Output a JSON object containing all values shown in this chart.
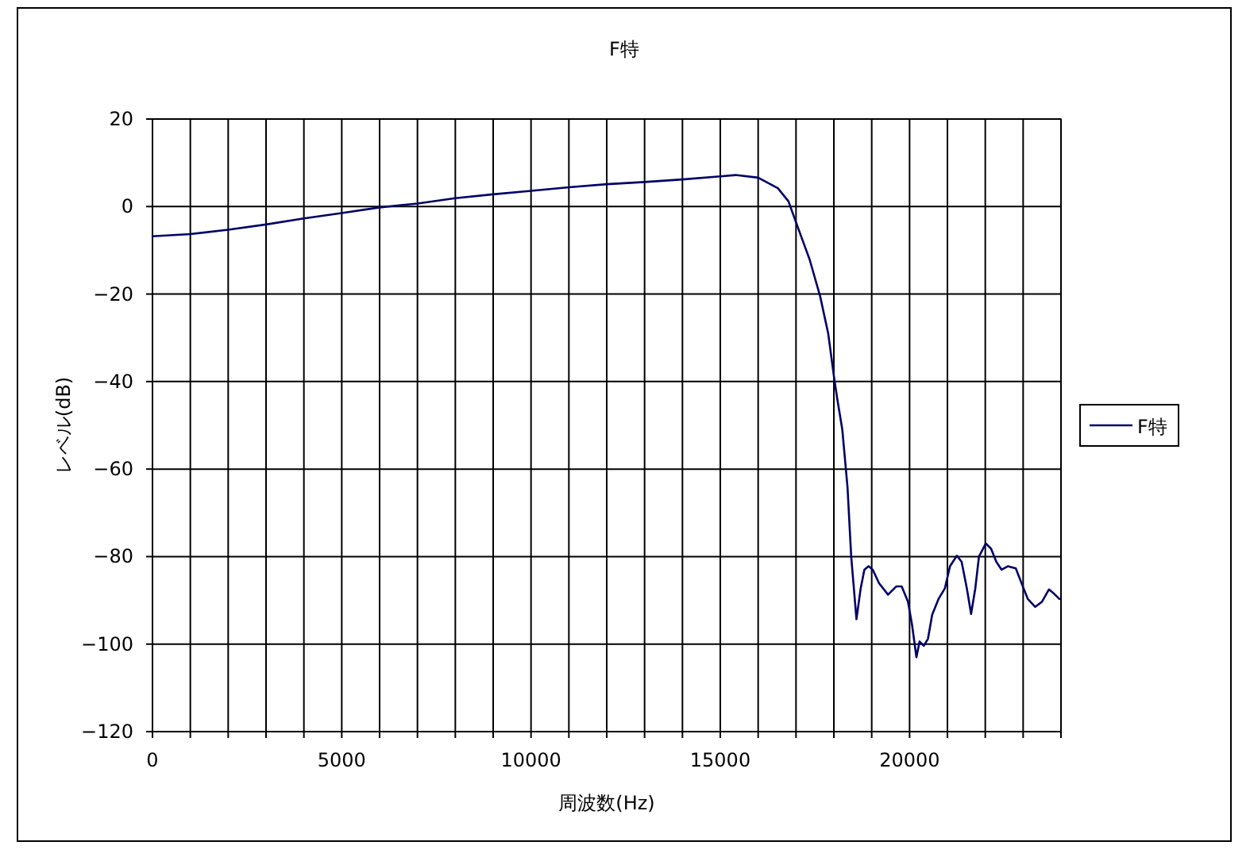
{
  "chart_data": {
    "type": "line",
    "title": "F特",
    "xlabel": "周波数(Hz)",
    "ylabel": "レベル(dB)",
    "xlim": [
      0,
      24000
    ],
    "ylim": [
      -120,
      20
    ],
    "xticks": [
      0,
      {
        "value": 1000,
        "label": null
      },
      {
        "value": 2000,
        "label": null
      },
      {
        "value": 3000,
        "label": null
      },
      {
        "value": 4000,
        "label": null
      },
      5000,
      {
        "value": 6000,
        "label": null
      },
      {
        "value": 7000,
        "label": null
      },
      {
        "value": 8000,
        "label": null
      },
      {
        "value": 9000,
        "label": null
      },
      10000,
      {
        "value": 11000,
        "label": null
      },
      {
        "value": 12000,
        "label": null
      },
      {
        "value": 13000,
        "label": null
      },
      {
        "value": 14000,
        "label": null
      },
      15000,
      {
        "value": 16000,
        "label": null
      },
      {
        "value": 17000,
        "label": null
      },
      {
        "value": 18000,
        "label": null
      },
      {
        "value": 19000,
        "label": null
      },
      20000,
      {
        "value": 21000,
        "label": null
      },
      {
        "value": 22000,
        "label": null
      },
      {
        "value": 23000,
        "label": null
      },
      {
        "value": 24000,
        "label": null
      }
    ],
    "yticks": [
      -120,
      -100,
      -80,
      -60,
      -40,
      -20,
      0,
      20
    ],
    "grid": true,
    "legend": "right",
    "x": [
      0,
      1000,
      2000,
      3000,
      4000,
      5000,
      6000,
      7000,
      8000,
      9000,
      10000,
      11000,
      12000,
      13000,
      14000,
      15000,
      15400,
      16000,
      16520,
      16800,
      17000,
      17360,
      17640,
      17850,
      18000,
      18083,
      18222,
      18361,
      18458,
      18597,
      18708,
      18806,
      18917,
      19028,
      19194,
      19431,
      19653,
      19792,
      19958,
      20069,
      20181,
      20264,
      20375,
      20486,
      20597,
      20764,
      20931,
      21069,
      21250,
      21375,
      21514,
      21625,
      21736,
      21833,
      22014,
      22153,
      22292,
      22431,
      22597,
      22806,
      22986,
      23125,
      23319,
      23500,
      23681,
      23819,
      23958
    ],
    "series": [
      {
        "name": "F特",
        "color": "#000066",
        "values": [
          -6.8,
          -6.3,
          -5.3,
          -4.1,
          -2.7,
          -1.5,
          -0.2,
          0.7,
          1.9,
          2.8,
          3.6,
          4.4,
          5.1,
          5.6,
          6.2,
          6.9,
          7.2,
          6.6,
          4.2,
          1.2,
          -3.6,
          -12.1,
          -20.6,
          -29,
          -38.7,
          -43.6,
          -50.9,
          -64.2,
          -80,
          -94.3,
          -87.3,
          -83,
          -82.2,
          -83,
          -86.1,
          -88.7,
          -86.8,
          -86.8,
          -90.3,
          -95.8,
          -103,
          -99.4,
          -100.4,
          -98.8,
          -93.3,
          -89.7,
          -87.3,
          -82.2,
          -79.8,
          -81.2,
          -87.3,
          -93.1,
          -87.3,
          -80,
          -77,
          -78.2,
          -81.2,
          -83,
          -82.2,
          -82.7,
          -86.7,
          -89.7,
          -91.5,
          -90.3,
          -87.5,
          -88.5,
          -89.7
        ]
      }
    ]
  }
}
